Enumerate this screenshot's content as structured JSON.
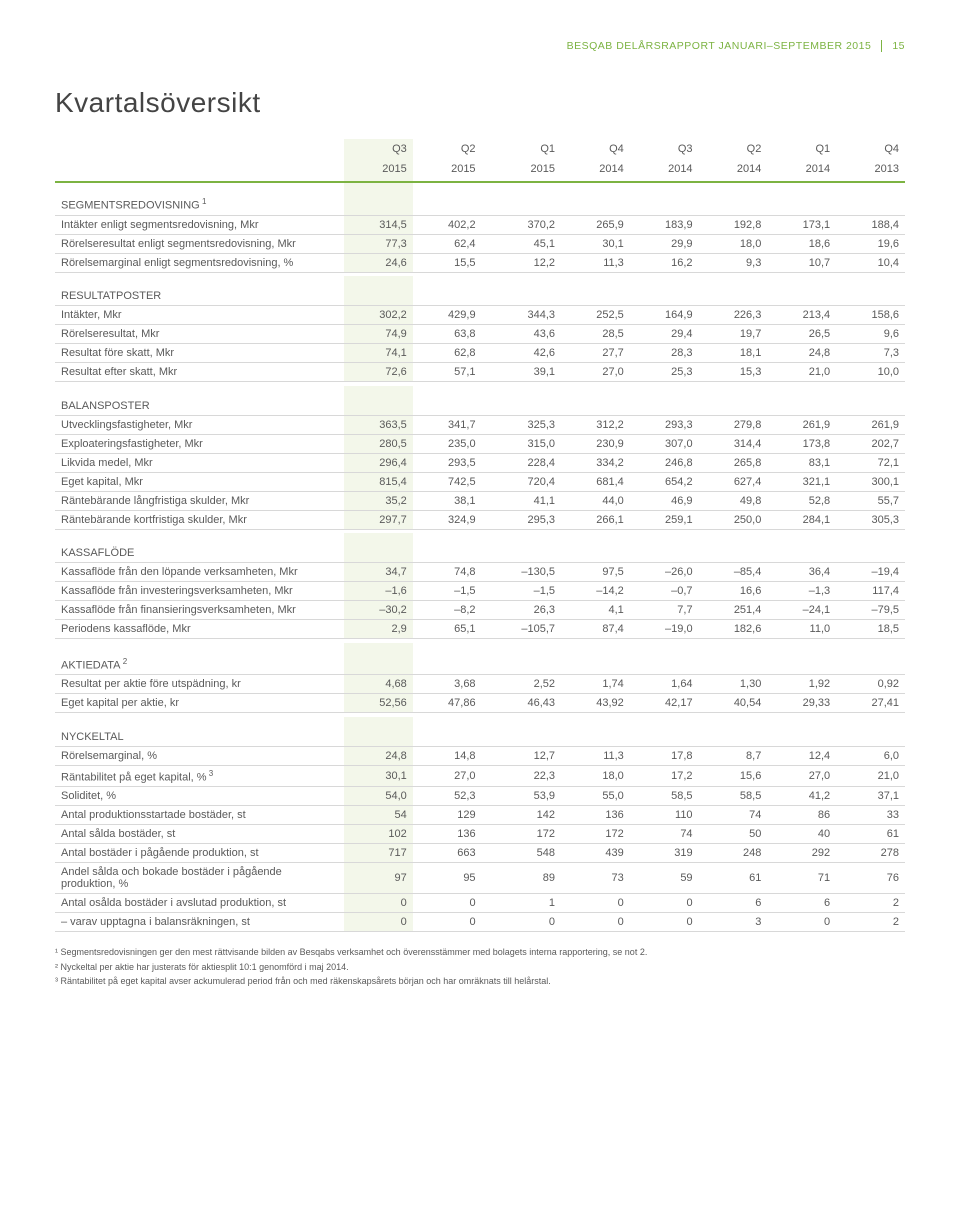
{
  "header": {
    "company": "BESQAB DELÅRSRAPPORT JANUARI–SEPTEMBER 2015",
    "page": "15"
  },
  "title": "Kvartalsöversikt",
  "columns": [
    {
      "top": "Q3",
      "bot": "2015"
    },
    {
      "top": "Q2",
      "bot": "2015"
    },
    {
      "top": "Q1",
      "bot": "2015"
    },
    {
      "top": "Q4",
      "bot": "2014"
    },
    {
      "top": "Q3",
      "bot": "2014"
    },
    {
      "top": "Q2",
      "bot": "2014"
    },
    {
      "top": "Q1",
      "bot": "2014"
    },
    {
      "top": "Q4",
      "bot": "2013"
    }
  ],
  "sections": [
    {
      "title": "SEGMENTSREDOVISNING",
      "sup": "1",
      "rows": [
        {
          "label": "Intäkter enligt segmentsredovisning, Mkr",
          "cells": [
            "314,5",
            "402,2",
            "370,2",
            "265,9",
            "183,9",
            "192,8",
            "173,1",
            "188,4"
          ]
        },
        {
          "label": "Rörelseresultat enligt segmentsredovisning, Mkr",
          "cells": [
            "77,3",
            "62,4",
            "45,1",
            "30,1",
            "29,9",
            "18,0",
            "18,6",
            "19,6"
          ]
        },
        {
          "label": "Rörelsemarginal enligt segmentsredovisning, %",
          "cells": [
            "24,6",
            "15,5",
            "12,2",
            "11,3",
            "16,2",
            "9,3",
            "10,7",
            "10,4"
          ]
        }
      ]
    },
    {
      "title": "RESULTATPOSTER",
      "rows": [
        {
          "label": "Intäkter, Mkr",
          "cells": [
            "302,2",
            "429,9",
            "344,3",
            "252,5",
            "164,9",
            "226,3",
            "213,4",
            "158,6"
          ]
        },
        {
          "label": "Rörelseresultat, Mkr",
          "cells": [
            "74,9",
            "63,8",
            "43,6",
            "28,5",
            "29,4",
            "19,7",
            "26,5",
            "9,6"
          ]
        },
        {
          "label": "Resultat före skatt, Mkr",
          "cells": [
            "74,1",
            "62,8",
            "42,6",
            "27,7",
            "28,3",
            "18,1",
            "24,8",
            "7,3"
          ]
        },
        {
          "label": "Resultat efter skatt, Mkr",
          "cells": [
            "72,6",
            "57,1",
            "39,1",
            "27,0",
            "25,3",
            "15,3",
            "21,0",
            "10,0"
          ]
        }
      ]
    },
    {
      "title": "BALANSPOSTER",
      "rows": [
        {
          "label": "Utvecklingsfastigheter, Mkr",
          "cells": [
            "363,5",
            "341,7",
            "325,3",
            "312,2",
            "293,3",
            "279,8",
            "261,9",
            "261,9"
          ]
        },
        {
          "label": "Exploateringsfastigheter, Mkr",
          "cells": [
            "280,5",
            "235,0",
            "315,0",
            "230,9",
            "307,0",
            "314,4",
            "173,8",
            "202,7"
          ]
        },
        {
          "label": "Likvida medel, Mkr",
          "cells": [
            "296,4",
            "293,5",
            "228,4",
            "334,2",
            "246,8",
            "265,8",
            "83,1",
            "72,1"
          ]
        },
        {
          "label": "Eget kapital, Mkr",
          "cells": [
            "815,4",
            "742,5",
            "720,4",
            "681,4",
            "654,2",
            "627,4",
            "321,1",
            "300,1"
          ]
        },
        {
          "label": "Räntebärande långfristiga skulder, Mkr",
          "cells": [
            "35,2",
            "38,1",
            "41,1",
            "44,0",
            "46,9",
            "49,8",
            "52,8",
            "55,7"
          ]
        },
        {
          "label": "Räntebärande kortfristiga skulder, Mkr",
          "cells": [
            "297,7",
            "324,9",
            "295,3",
            "266,1",
            "259,1",
            "250,0",
            "284,1",
            "305,3"
          ]
        }
      ]
    },
    {
      "title": "KASSAFLÖDE",
      "rows": [
        {
          "label": "Kassaflöde från den löpande verksamheten, Mkr",
          "cells": [
            "34,7",
            "74,8",
            "–130,5",
            "97,5",
            "–26,0",
            "–85,4",
            "36,4",
            "–19,4"
          ]
        },
        {
          "label": "Kassaflöde från investeringsverksamheten, Mkr",
          "cells": [
            "–1,6",
            "–1,5",
            "–1,5",
            "–14,2",
            "–0,7",
            "16,6",
            "–1,3",
            "117,4"
          ]
        },
        {
          "label": "Kassaflöde från finansieringsverksamheten, Mkr",
          "cells": [
            "–30,2",
            "–8,2",
            "26,3",
            "4,1",
            "7,7",
            "251,4",
            "–24,1",
            "–79,5"
          ]
        },
        {
          "label": "Periodens kassaflöde, Mkr",
          "cells": [
            "2,9",
            "65,1",
            "–105,7",
            "87,4",
            "–19,0",
            "182,6",
            "11,0",
            "18,5"
          ]
        }
      ]
    },
    {
      "title": "AKTIEDATA",
      "sup": "2",
      "rows": [
        {
          "label": "Resultat per aktie före utspädning, kr",
          "cells": [
            "4,68",
            "3,68",
            "2,52",
            "1,74",
            "1,64",
            "1,30",
            "1,92",
            "0,92"
          ]
        },
        {
          "label": "Eget kapital per aktie, kr",
          "cells": [
            "52,56",
            "47,86",
            "46,43",
            "43,92",
            "42,17",
            "40,54",
            "29,33",
            "27,41"
          ]
        }
      ]
    },
    {
      "title": "NYCKELTAL",
      "rows": [
        {
          "label": "Rörelsemarginal, %",
          "cells": [
            "24,8",
            "14,8",
            "12,7",
            "11,3",
            "17,8",
            "8,7",
            "12,4",
            "6,0"
          ]
        },
        {
          "label": "Räntabilitet på eget kapital, %",
          "sup": "3",
          "cells": [
            "30,1",
            "27,0",
            "22,3",
            "18,0",
            "17,2",
            "15,6",
            "27,0",
            "21,0"
          ]
        },
        {
          "label": "Soliditet, %",
          "cells": [
            "54,0",
            "52,3",
            "53,9",
            "55,0",
            "58,5",
            "58,5",
            "41,2",
            "37,1"
          ]
        },
        {
          "label": "Antal produktionsstartade bostäder, st",
          "cells": [
            "54",
            "129",
            "142",
            "136",
            "110",
            "74",
            "86",
            "33"
          ]
        },
        {
          "label": "Antal sålda bostäder, st",
          "cells": [
            "102",
            "136",
            "172",
            "172",
            "74",
            "50",
            "40",
            "61"
          ]
        },
        {
          "label": "Antal bostäder i pågående produktion, st",
          "cells": [
            "717",
            "663",
            "548",
            "439",
            "319",
            "248",
            "292",
            "278"
          ]
        },
        {
          "label": "Andel sålda och bokade bostäder i pågående produktion, %",
          "cells": [
            "97",
            "95",
            "89",
            "73",
            "59",
            "61",
            "71",
            "76"
          ]
        },
        {
          "label": "Antal osålda bostäder i avslutad produktion, st",
          "cells": [
            "0",
            "0",
            "1",
            "0",
            "0",
            "6",
            "6",
            "2"
          ]
        },
        {
          "label": "– varav upptagna i balansräkningen, st",
          "cells": [
            "0",
            "0",
            "0",
            "0",
            "0",
            "3",
            "0",
            "2"
          ]
        }
      ]
    }
  ],
  "footnotes": [
    "¹ Segmentsredovisningen ger den mest rättvisande bilden av Besqabs verksamhet och överensstämmer med bolagets interna rapportering, se not 2.",
    "² Nyckeltal per aktie har justerats för aktiesplit 10:1 genomförd i maj 2014.",
    "³ Räntabilitet på eget kapital avser ackumulerad period från och med räkenskapsårets början och har omräknats till helårstal."
  ],
  "style": {
    "accent": "#7cb342",
    "highlight_bg": "#f3f7ea",
    "border": "#d8d8d8",
    "text": "#5a5a5a"
  }
}
